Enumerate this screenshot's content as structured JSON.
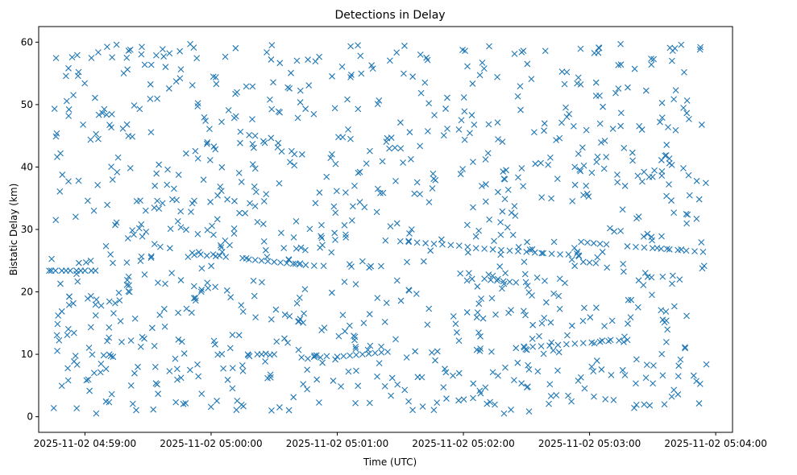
{
  "chart_data": {
    "type": "scatter",
    "title": "Detections in Delay",
    "xlabel": "Time (UTC)",
    "ylabel": "Bistatic Delay (km)",
    "marker": "x",
    "color": "#1f77b4",
    "grid": false,
    "legend": "none",
    "x_is_time": true,
    "xlim": [
      "2025-11-02 04:58:38",
      "2025-11-02 05:04:08"
    ],
    "ylim": [
      -2.5,
      62.5
    ],
    "xticks": [
      "2025-11-02 04:59:00",
      "2025-11-02 05:00:00",
      "2025-11-02 05:01:00",
      "2025-11-02 05:02:00",
      "2025-11-02 05:03:00",
      "2025-11-02 05:04:00"
    ],
    "yticks": [
      "0",
      "10",
      "20",
      "30",
      "40",
      "50",
      "60"
    ],
    "x_time_range": [
      "2025-11-02 04:58:43",
      "2025-11-02 05:03:56"
    ],
    "y_range": [
      0.5,
      59.8
    ],
    "approximate_point_count": 1100,
    "series": [
      {
        "values_kind": "structured track segments",
        "points": [
          {
            "x": "2025-11-02 04:58:43",
            "y": 23.4
          },
          {
            "x": "2025-11-02 04:58:44",
            "y": 23.4
          },
          {
            "x": "2025-11-02 04:58:46",
            "y": 23.4
          },
          {
            "x": "2025-11-02 04:58:49",
            "y": 23.4
          },
          {
            "x": "2025-11-02 04:58:51",
            "y": 23.4
          },
          {
            "x": "2025-11-02 04:58:53",
            "y": 23.4
          },
          {
            "x": "2025-11-02 04:58:56",
            "y": 23.4
          },
          {
            "x": "2025-11-02 04:58:58",
            "y": 23.4
          },
          {
            "x": "2025-11-02 04:59:00",
            "y": 23.4
          },
          {
            "x": "2025-11-02 04:59:03",
            "y": 23.4
          },
          {
            "x": "2025-11-02 04:59:05",
            "y": 23.4
          },
          {
            "x": "2025-11-02 04:59:49",
            "y": 25.6
          },
          {
            "x": "2025-11-02 04:59:52",
            "y": 25.9
          },
          {
            "x": "2025-11-02 04:59:55",
            "y": 26.0
          },
          {
            "x": "2025-11-02 04:59:58",
            "y": 25.8
          },
          {
            "x": "2025-11-02 05:00:01",
            "y": 26.0
          },
          {
            "x": "2025-11-02 05:00:04",
            "y": 25.8
          },
          {
            "x": "2025-11-02 05:00:07",
            "y": 25.6
          },
          {
            "x": "2025-11-02 05:00:15",
            "y": 25.4
          },
          {
            "x": "2025-11-02 05:00:18",
            "y": 25.2
          },
          {
            "x": "2025-11-02 05:00:21",
            "y": 25.1
          },
          {
            "x": "2025-11-02 05:00:24",
            "y": 25.0
          },
          {
            "x": "2025-11-02 05:00:27",
            "y": 24.9
          },
          {
            "x": "2025-11-02 05:00:30",
            "y": 24.8
          },
          {
            "x": "2025-11-02 05:00:33",
            "y": 24.7
          },
          {
            "x": "2025-11-02 05:00:36",
            "y": 24.6
          },
          {
            "x": "2025-11-02 05:00:39",
            "y": 24.5
          },
          {
            "x": "2025-11-02 05:00:42",
            "y": 24.4
          },
          {
            "x": "2025-11-02 05:00:45",
            "y": 24.3
          },
          {
            "x": "2025-11-02 05:00:49",
            "y": 24.2
          },
          {
            "x": "2025-11-02 05:00:22",
            "y": 10.0
          },
          {
            "x": "2025-11-02 05:00:24",
            "y": 10.0
          },
          {
            "x": "2025-11-02 05:00:26",
            "y": 10.1
          },
          {
            "x": "2025-11-02 05:00:28",
            "y": 9.9
          },
          {
            "x": "2025-11-02 05:00:30",
            "y": 10.0
          },
          {
            "x": "2025-11-02 05:00:43",
            "y": 9.5
          },
          {
            "x": "2025-11-02 05:00:46",
            "y": 9.3
          },
          {
            "x": "2025-11-02 05:00:49",
            "y": 9.6
          },
          {
            "x": "2025-11-02 05:00:52",
            "y": 9.5
          },
          {
            "x": "2025-11-02 05:00:55",
            "y": 9.7
          },
          {
            "x": "2025-11-02 05:01:00",
            "y": 9.6
          },
          {
            "x": "2025-11-02 05:01:03",
            "y": 9.7
          },
          {
            "x": "2025-11-02 05:01:06",
            "y": 9.8
          },
          {
            "x": "2025-11-02 05:01:09",
            "y": 9.9
          },
          {
            "x": "2025-11-02 05:01:12",
            "y": 10.0
          },
          {
            "x": "2025-11-02 05:01:15",
            "y": 10.1
          },
          {
            "x": "2025-11-02 05:01:18",
            "y": 10.2
          },
          {
            "x": "2025-11-02 05:01:21",
            "y": 10.3
          },
          {
            "x": "2025-11-02 05:01:24",
            "y": 10.4
          },
          {
            "x": "2025-11-02 05:01:30",
            "y": 28.1
          },
          {
            "x": "2025-11-02 05:01:34",
            "y": 28.0
          },
          {
            "x": "2025-11-02 05:01:38",
            "y": 27.9
          },
          {
            "x": "2025-11-02 05:01:42",
            "y": 27.8
          },
          {
            "x": "2025-11-02 05:01:46",
            "y": 27.7
          },
          {
            "x": "2025-11-02 05:01:50",
            "y": 27.6
          },
          {
            "x": "2025-11-02 05:01:54",
            "y": 27.5
          },
          {
            "x": "2025-11-02 05:01:58",
            "y": 27.4
          },
          {
            "x": "2025-11-02 05:02:02",
            "y": 27.2
          },
          {
            "x": "2025-11-02 05:02:06",
            "y": 27.0
          },
          {
            "x": "2025-11-02 05:02:10",
            "y": 26.9
          },
          {
            "x": "2025-11-02 05:02:14",
            "y": 26.8
          },
          {
            "x": "2025-11-02 05:02:18",
            "y": 26.7
          },
          {
            "x": "2025-11-02 05:02:22",
            "y": 26.6
          },
          {
            "x": "2025-11-02 05:02:26",
            "y": 26.5
          },
          {
            "x": "2025-11-02 05:02:30",
            "y": 26.4
          },
          {
            "x": "2025-11-02 05:02:34",
            "y": 26.3
          },
          {
            "x": "2025-11-02 05:02:38",
            "y": 26.2
          },
          {
            "x": "2025-11-02 05:02:42",
            "y": 26.1
          },
          {
            "x": "2025-11-02 05:02:46",
            "y": 26.0
          },
          {
            "x": "2025-11-02 05:02:50",
            "y": 26.0
          },
          {
            "x": "2025-11-02 05:02:10",
            "y": 22.1
          },
          {
            "x": "2025-11-02 05:02:13",
            "y": 21.9
          },
          {
            "x": "2025-11-02 05:02:16",
            "y": 21.8
          },
          {
            "x": "2025-11-02 05:02:19",
            "y": 21.7
          },
          {
            "x": "2025-11-02 05:02:22",
            "y": 21.6
          },
          {
            "x": "2025-11-02 05:02:25",
            "y": 21.5
          },
          {
            "x": "2025-11-02 05:02:25",
            "y": 11.0
          },
          {
            "x": "2025-11-02 05:02:29",
            "y": 11.1
          },
          {
            "x": "2025-11-02 05:02:33",
            "y": 11.2
          },
          {
            "x": "2025-11-02 05:02:37",
            "y": 11.3
          },
          {
            "x": "2025-11-02 05:02:41",
            "y": 11.4
          },
          {
            "x": "2025-11-02 05:02:45",
            "y": 11.5
          },
          {
            "x": "2025-11-02 05:02:49",
            "y": 11.6
          },
          {
            "x": "2025-11-02 05:02:53",
            "y": 11.7
          },
          {
            "x": "2025-11-02 05:02:57",
            "y": 11.8
          },
          {
            "x": "2025-11-02 05:03:01",
            "y": 11.9
          },
          {
            "x": "2025-11-02 05:03:05",
            "y": 12.0
          },
          {
            "x": "2025-11-02 05:03:09",
            "y": 12.1
          },
          {
            "x": "2025-11-02 05:02:56",
            "y": 28.0
          },
          {
            "x": "2025-11-02 05:02:59",
            "y": 27.9
          },
          {
            "x": "2025-11-02 05:03:02",
            "y": 27.8
          },
          {
            "x": "2025-11-02 05:03:05",
            "y": 27.7
          },
          {
            "x": "2025-11-02 05:03:08",
            "y": 27.6
          },
          {
            "x": "2025-11-02 05:03:18",
            "y": 27.3
          },
          {
            "x": "2025-11-02 05:03:22",
            "y": 27.2
          },
          {
            "x": "2025-11-02 05:03:26",
            "y": 27.1
          },
          {
            "x": "2025-11-02 05:03:30",
            "y": 27.0
          },
          {
            "x": "2025-11-02 05:03:34",
            "y": 26.9
          },
          {
            "x": "2025-11-02 05:03:38",
            "y": 26.8
          },
          {
            "x": "2025-11-02 05:03:42",
            "y": 26.7
          },
          {
            "x": "2025-11-02 05:03:46",
            "y": 26.6
          },
          {
            "x": "2025-11-02 05:03:50",
            "y": 26.5
          },
          {
            "x": "2025-11-02 05:03:54",
            "y": 26.4
          },
          {
            "x": "2025-11-02 05:02:57",
            "y": 24.8
          },
          {
            "x": "2025-11-02 05:03:00",
            "y": 24.7
          },
          {
            "x": "2025-11-02 05:03:03",
            "y": 24.6
          },
          {
            "x": "2025-11-02 05:03:06",
            "y": 12.2
          },
          {
            "x": "2025-11-02 05:03:10",
            "y": 12.3
          },
          {
            "x": "2025-11-02 05:03:14",
            "y": 12.2
          },
          {
            "x": "2025-11-02 05:03:18",
            "y": 12.3
          }
        ]
      }
    ],
    "noise_points_note": "Remaining ~900 points scattered approximately uniformly over the full x and y range (clutter detections)."
  }
}
